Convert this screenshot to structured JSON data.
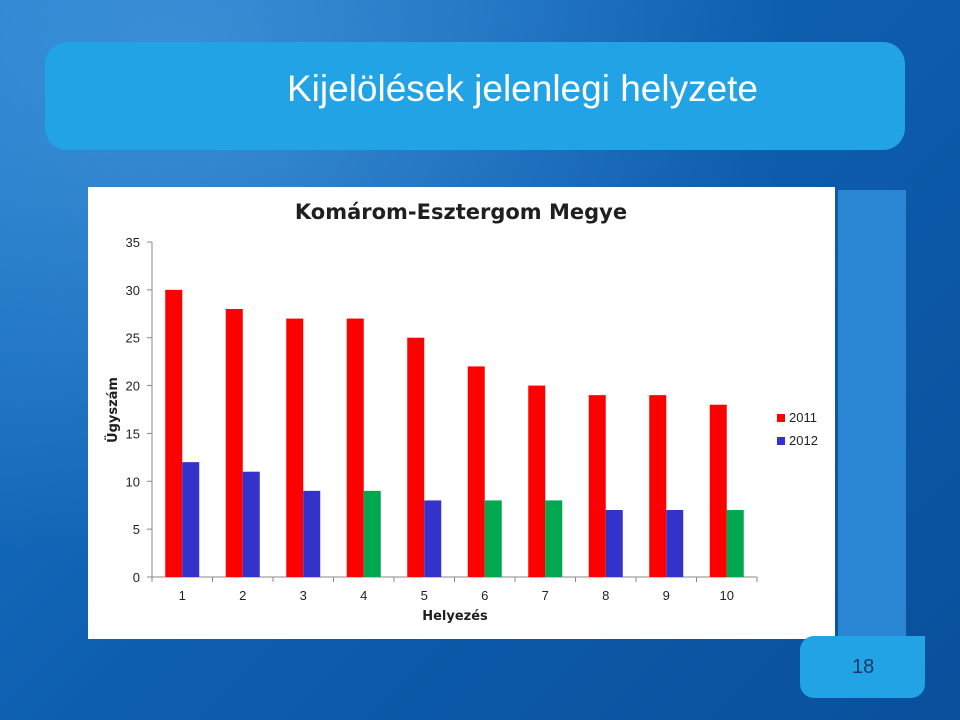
{
  "slide": {
    "title": "Kijelölések jelenlegi helyzete",
    "page_number": "18"
  },
  "colors": {
    "series_2011": "#ff0000",
    "series_2012": "#3333cc",
    "highlight_2012": "#00a84f",
    "background": "#0e5fb0",
    "title_band": "#22a3e6"
  },
  "chart_data": {
    "type": "bar",
    "title": "Komárom-Esztergom Megye",
    "xlabel": "Helyezés",
    "ylabel": "Ügyszám",
    "categories": [
      "1",
      "2",
      "3",
      "4",
      "5",
      "6",
      "7",
      "8",
      "9",
      "10"
    ],
    "series": [
      {
        "name": "2011",
        "values": [
          30,
          28,
          27,
          27,
          25,
          22,
          20,
          19,
          19,
          18
        ],
        "color": "#ff0000"
      },
      {
        "name": "2012",
        "values": [
          12,
          11,
          9,
          9,
          8,
          8,
          8,
          7,
          7,
          7
        ],
        "color": "#3333cc",
        "point_colors": [
          "#3333cc",
          "#3333cc",
          "#3333cc",
          "#00a84f",
          "#3333cc",
          "#00a84f",
          "#00a84f",
          "#3333cc",
          "#3333cc",
          "#00a84f"
        ]
      }
    ],
    "ylim": [
      0,
      35
    ],
    "yticks": [
      0,
      5,
      10,
      15,
      20,
      25,
      30,
      35
    ],
    "grid": false,
    "legend": "right"
  }
}
